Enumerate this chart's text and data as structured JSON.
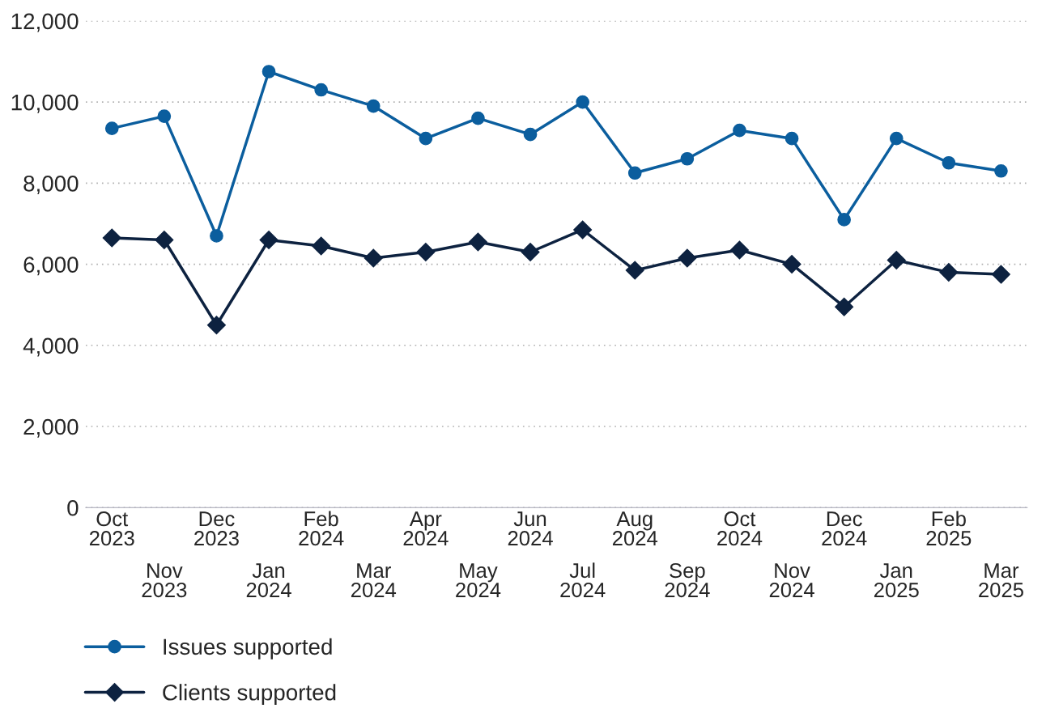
{
  "chart_data": {
    "type": "line",
    "categories": [
      "Oct\n2023",
      "Nov\n2023",
      "Dec\n2023",
      "Jan\n2024",
      "Feb\n2024",
      "Mar\n2024",
      "Apr\n2024",
      "May\n2024",
      "Jun\n2024",
      "Jul\n2024",
      "Aug\n2024",
      "Sep\n2024",
      "Oct\n2024",
      "Nov\n2024",
      "Dec\n2024",
      "Jan\n2025",
      "Feb\n2025",
      "Mar\n2025"
    ],
    "series": [
      {
        "name": "Issues supported",
        "color": "#0b5e9e",
        "marker": "circle",
        "values": [
          9350,
          9650,
          6700,
          10750,
          10300,
          9900,
          9100,
          9600,
          9200,
          10000,
          8250,
          8600,
          9300,
          9100,
          7100,
          9100,
          8500,
          8300
        ]
      },
      {
        "name": "Clients supported",
        "color": "#0d2240",
        "marker": "diamond",
        "values": [
          6650,
          6600,
          4500,
          6600,
          6450,
          6150,
          6300,
          6550,
          6300,
          6850,
          5850,
          6150,
          6350,
          6000,
          4950,
          6100,
          5800,
          5750
        ]
      }
    ],
    "ylim": [
      0,
      12000
    ],
    "yticks": [
      {
        "value": 0,
        "label": "0"
      },
      {
        "value": 2000,
        "label": "2,000"
      },
      {
        "value": 4000,
        "label": "4,000"
      },
      {
        "value": 6000,
        "label": "6,000"
      },
      {
        "value": 8000,
        "label": "8,000"
      },
      {
        "value": 10000,
        "label": "10,000"
      },
      {
        "value": 12000,
        "label": "12,000"
      }
    ],
    "grid": "y",
    "legend": "bottom left",
    "line_style": "solid"
  }
}
